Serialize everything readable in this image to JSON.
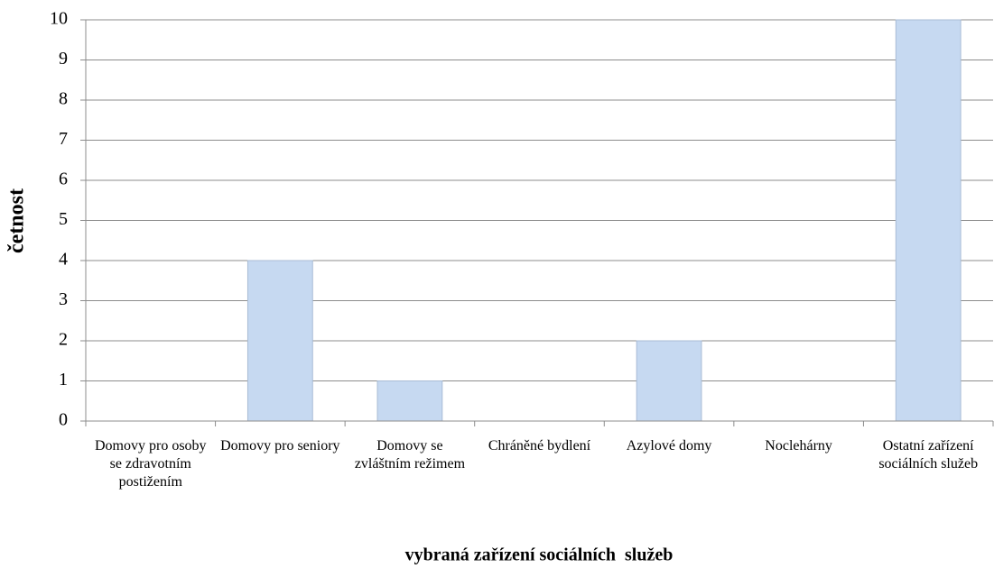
{
  "chart_data": {
    "type": "bar",
    "categories": [
      "Domovy pro osoby se zdravotním postižením",
      "Domovy pro seniory",
      "Domovy se zvláštním režimem",
      "Chráněné bydlení",
      "Azylové domy",
      "Noclehárny",
      "Ostatní zařízení sociálních služeb"
    ],
    "values": [
      0,
      4,
      1,
      0,
      2,
      0,
      10
    ],
    "color": "#c6d9f1",
    "ylim": [
      0,
      10
    ],
    "yticks": [
      0,
      1,
      2,
      3,
      4,
      5,
      6,
      7,
      8,
      9,
      10
    ],
    "grid": true,
    "xlabel": "vybraná zařízení sociálních  služeb",
    "ylabel": "četnost"
  }
}
